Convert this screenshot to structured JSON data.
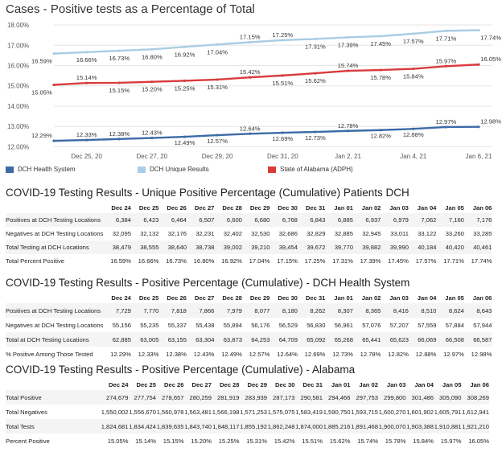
{
  "chart_data": {
    "type": "line",
    "title": "Cases - Positive tests as a Percentage of Total",
    "ylim": [
      11.7,
      18.2
    ],
    "y_ticks": [
      "12.00%",
      "13.00%",
      "14.00%",
      "15.00%",
      "16.00%",
      "17.00%",
      "18.00%"
    ],
    "y_tick_values": [
      12,
      13,
      14,
      15,
      16,
      17,
      18
    ],
    "x_labels": [
      "Dec 25, 20",
      "Dec 27, 20",
      "Dec 29, 20",
      "Dec 31, 20",
      "Jan 2, 21",
      "Jan 4, 21",
      "Jan 6, 21"
    ],
    "x_label_index": [
      1,
      3,
      5,
      7,
      9,
      11,
      13
    ],
    "x": [
      "Dec 24",
      "Dec 25",
      "Dec 26",
      "Dec 27",
      "Dec 28",
      "Dec 29",
      "Dec 30",
      "Dec 31",
      "Jan 01",
      "Jan 02",
      "Jan 03",
      "Jan 04",
      "Jan 05",
      "Jan 06"
    ],
    "series": [
      {
        "name": "DCH Health System",
        "color": "#3d6ba6",
        "values": [
          12.29,
          12.33,
          12.38,
          12.43,
          12.49,
          12.57,
          12.64,
          12.69,
          12.73,
          12.78,
          12.82,
          12.88,
          12.97,
          12.98
        ],
        "labels": [
          "12.29%",
          "12.33%",
          "12.38%",
          "12.43%",
          "12.49%",
          "12.57%",
          "12.64%",
          "12.69%",
          "12.73%",
          "12.78%",
          "12.82%",
          "12.88%",
          "12.97%",
          "12.98%"
        ]
      },
      {
        "name": "DCH Unique Results",
        "color": "#a9cde4",
        "values": [
          16.59,
          16.66,
          16.73,
          16.8,
          16.92,
          17.04,
          17.15,
          17.25,
          17.31,
          17.39,
          17.45,
          17.57,
          17.71,
          17.74
        ],
        "labels": [
          "16.59%",
          "16.66%",
          "16.73%",
          "16.80%",
          "16.92%",
          "17.04%",
          "17.15%",
          "17.25%",
          "17.31%",
          "17.39%",
          "17.45%",
          "17.57%",
          "17.71%",
          "17.74%"
        ]
      },
      {
        "name": "State of Alabama (ADPH)",
        "color": "#d93b3b",
        "values": [
          15.05,
          15.14,
          15.15,
          15.2,
          15.25,
          15.31,
          15.42,
          15.51,
          15.62,
          15.74,
          15.78,
          15.84,
          15.97,
          16.05
        ],
        "labels": [
          "15.05%",
          "15.14%",
          "15.15%",
          "15.20%",
          "15.25%",
          "15.31%",
          "15.42%",
          "15.51%",
          "15.62%",
          "15.74%",
          "15.78%",
          "15.84%",
          "15.97%",
          "16.05%"
        ]
      }
    ]
  },
  "tables": [
    {
      "title": "COVID-19 Testing Results - Unique Positive Percentage (Cumulative) Patients DCH",
      "headers": [
        "Dec 24",
        "Dec 25",
        "Dec 26",
        "Dec 27",
        "Dec 28",
        "Dec 29",
        "Dec 30",
        "Dec 31",
        "Jan 01",
        "Jan 02",
        "Jan 03",
        "Jan 04",
        "Jan 05",
        "Jan 06"
      ],
      "rows": [
        {
          "label": "Positives at DCH Testing Locations",
          "values": [
            "6,384",
            "6,423",
            "6,464",
            "6,507",
            "6,600",
            "6,680",
            "6,768",
            "6,843",
            "6,885",
            "6,937",
            "6,979",
            "7,062",
            "7,160",
            "7,176"
          ]
        },
        {
          "label": "Negatives at DCH Testing Locations",
          "values": [
            "32,095",
            "32,132",
            "32,176",
            "32,231",
            "32,402",
            "32,530",
            "32,686",
            "32,829",
            "32,885",
            "32,945",
            "33,011",
            "33,122",
            "33,260",
            "33,285"
          ]
        },
        {
          "label": "Total Testing at DCH Locations",
          "values": [
            "38,479",
            "38,555",
            "38,640",
            "38,738",
            "39,002",
            "39,210",
            "39,454",
            "39,672",
            "39,770",
            "39,882",
            "39,990",
            "40,184",
            "40,420",
            "40,461"
          ]
        },
        {
          "label": "Total Percent Positive",
          "values": [
            "16.59%",
            "16.66%",
            "16.73%",
            "16.80%",
            "16.92%",
            "17.04%",
            "17.15%",
            "17.25%",
            "17.31%",
            "17.39%",
            "17.45%",
            "17.57%",
            "17.71%",
            "17.74%"
          ]
        }
      ]
    },
    {
      "title": "COVID-19 Testing Results - Positive Percentage (Cumulative) - DCH Health System",
      "headers": [
        "Dec 24",
        "Dec 25",
        "Dec 26",
        "Dec 27",
        "Dec 28",
        "Dec 29",
        "Dec 30",
        "Dec 31",
        "Jan 01",
        "Jan 02",
        "Jan 03",
        "Jan 04",
        "Jan 05",
        "Jan 06"
      ],
      "rows": [
        {
          "label": "Positives at DCH Testing Locations",
          "values": [
            "7,729",
            "7,770",
            "7,818",
            "7,866",
            "7,979",
            "8,077",
            "8,180",
            "8,262",
            "8,307",
            "8,365",
            "8,416",
            "8,510",
            "8,624",
            "8,643"
          ]
        },
        {
          "label": "Negatives at DCH Testing Locations",
          "values": [
            "55,156",
            "55,235",
            "55,337",
            "55,438",
            "55,894",
            "56,176",
            "56,529",
            "56,830",
            "56,961",
            "57,076",
            "57,207",
            "57,559",
            "57,884",
            "57,944"
          ]
        },
        {
          "label": "Total at DCH Testing Locations",
          "values": [
            "62,885",
            "63,005",
            "63,155",
            "63,304",
            "63,873",
            "64,253",
            "64,709",
            "65,092",
            "65,268",
            "65,441",
            "65,623",
            "66,069",
            "66,508",
            "66,587"
          ]
        },
        {
          "label": "% Positive Among Those Tested",
          "values": [
            "12.29%",
            "12.33%",
            "12.38%",
            "12.43%",
            "12.49%",
            "12.57%",
            "12.64%",
            "12.69%",
            "12.73%",
            "12.78%",
            "12.82%",
            "12.88%",
            "12.97%",
            "12.98%"
          ]
        }
      ]
    },
    {
      "title": "COVID-19 Testing Results - Positive Percentage (Cumulative) - Alabama",
      "headers": [
        "Dec 24",
        "Dec 25",
        "Dec 26",
        "Dec 27",
        "Dec 28",
        "Dec 29",
        "Dec 30",
        "Dec 31",
        "Jan 01",
        "Jan 02",
        "Jan 03",
        "Jan 04",
        "Jan 05",
        "Jan 06"
      ],
      "rows": [
        {
          "label": "Total Positive",
          "values": [
            "274,679",
            "277,754",
            "278,657",
            "280,259",
            "281,919",
            "283,939",
            "287,173",
            "290,581",
            "294,466",
            "297,753",
            "299,800",
            "301,486",
            "305,090",
            "308,269"
          ]
        },
        {
          "label": "Total Negatives",
          "values": [
            "1,550,002",
            "1,556,670",
            "1,560,978",
            "1,563,481",
            "1,566,198",
            "1,571,253",
            "1,575,075",
            "1,583,419",
            "1,590,750",
            "1,593,715",
            "1,600,270",
            "1,601,902",
            "1,605,791",
            "1,612,941"
          ]
        },
        {
          "label": "Total Tests",
          "values": [
            "1,824,681",
            "1,834,424",
            "1,839,635",
            "1,843,740",
            "1,848,117",
            "1,855,192",
            "1,862,248",
            "1,874,000",
            "1,885,216",
            "1,891,468",
            "1,900,070",
            "1,903,388",
            "1,910,881",
            "1,921,210"
          ]
        },
        {
          "label": "Percent Positive",
          "values": [
            "15.05%",
            "15.14%",
            "15.15%",
            "15.20%",
            "15.25%",
            "15.31%",
            "15.42%",
            "15.51%",
            "15.62%",
            "15.74%",
            "15.78%",
            "15.84%",
            "15.97%",
            "16.05%"
          ]
        }
      ]
    }
  ]
}
